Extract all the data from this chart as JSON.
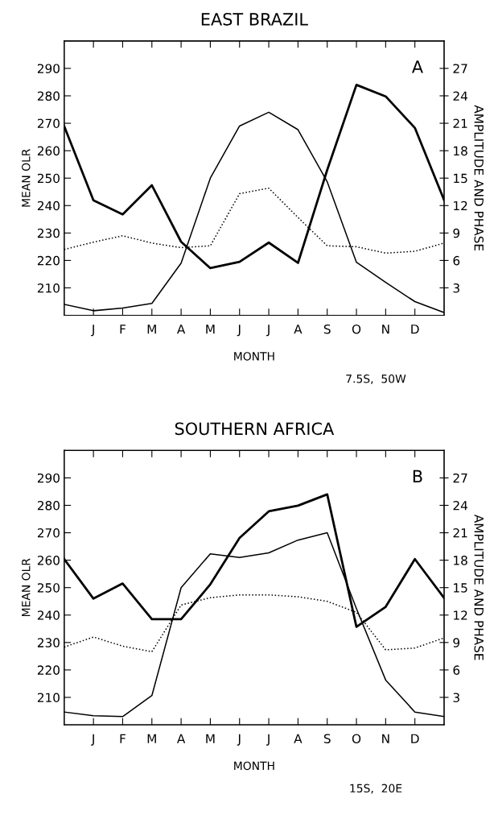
{
  "chart_data": [
    {
      "type": "line",
      "title": "EAST BRAZIL",
      "xlabel": "MONTH",
      "ylabel": "MEAN OLR",
      "y2label": "AMPLITUDE AND PHASE",
      "annotations": [
        "A",
        "7.5S,  50W"
      ],
      "categories": [
        null,
        "J",
        "F",
        "M",
        "A",
        "M",
        "J",
        "J",
        "A",
        "S",
        "O",
        "N",
        "D",
        null
      ],
      "ylim": [
        200,
        300
      ],
      "yticks": [
        210,
        220,
        230,
        240,
        250,
        260,
        270,
        280,
        290
      ],
      "y2lim": [
        0,
        30
      ],
      "y2ticks": [
        3,
        6,
        9,
        12,
        15,
        18,
        21,
        24,
        27
      ],
      "grid": false,
      "legend": false,
      "series": [
        {
          "color": "#000000",
          "line_style": "solid",
          "values": [
            268.9,
            241.9,
            236.8,
            247.4,
            226.8,
            217.2,
            219.5,
            226.5,
            219.1,
            253,
            284,
            279.8,
            268.3,
            242
          ]
        },
        {
          "color": "#000000",
          "line_style": "solid",
          "axis": "y2",
          "values": [
            1.2,
            0.5,
            0.8,
            1.3,
            5.7,
            15.0,
            20.7,
            22.2,
            20.3,
            14.6,
            5.8,
            3.6,
            1.5,
            0.3
          ]
        },
        {
          "color": "#000000",
          "line_style": "dotted",
          "axis": "y2",
          "values": [
            7.2,
            8.0,
            8.7,
            7.9,
            7.4,
            7.6,
            13.3,
            13.9,
            10.7,
            7.6,
            7.5,
            6.8,
            7.0,
            7.9
          ]
        }
      ]
    },
    {
      "type": "line",
      "title": "SOUTHERN AFRICA",
      "xlabel": "MONTH",
      "ylabel": "MEAN OLR",
      "y2label": "AMPLITUDE AND PHASE",
      "annotations": [
        "B",
        "15S,  20E"
      ],
      "categories": [
        null,
        "J",
        "F",
        "M",
        "A",
        "M",
        "J",
        "J",
        "A",
        "S",
        "O",
        "N",
        "D",
        null
      ],
      "ylim": [
        200,
        300
      ],
      "yticks": [
        210,
        220,
        230,
        240,
        250,
        260,
        270,
        280,
        290
      ],
      "y2lim": [
        0,
        30
      ],
      "y2ticks": [
        3,
        6,
        9,
        12,
        15,
        18,
        21,
        24,
        27
      ],
      "grid": false,
      "legend": false,
      "series": [
        {
          "color": "#000000",
          "line_style": "solid",
          "values": [
            260.4,
            246.0,
            251.5,
            238.5,
            238.5,
            251.2,
            268.1,
            277.8,
            279.9,
            284.0,
            235.7,
            243.0,
            260.4,
            246.2
          ]
        },
        {
          "color": "#000000",
          "line_style": "solid",
          "axis": "y2",
          "values": [
            1.4,
            1.0,
            0.9,
            3.2,
            15.0,
            18.7,
            18.3,
            18.8,
            20.2,
            21.0,
            12.7,
            4.9,
            1.4,
            0.9
          ]
        },
        {
          "color": "#000000",
          "line_style": "dotted",
          "axis": "y2",
          "values": [
            8.5,
            9.6,
            8.6,
            8.0,
            13.1,
            13.9,
            14.2,
            14.2,
            14.0,
            13.5,
            12.3,
            8.2,
            8.4,
            9.5
          ]
        }
      ]
    }
  ]
}
